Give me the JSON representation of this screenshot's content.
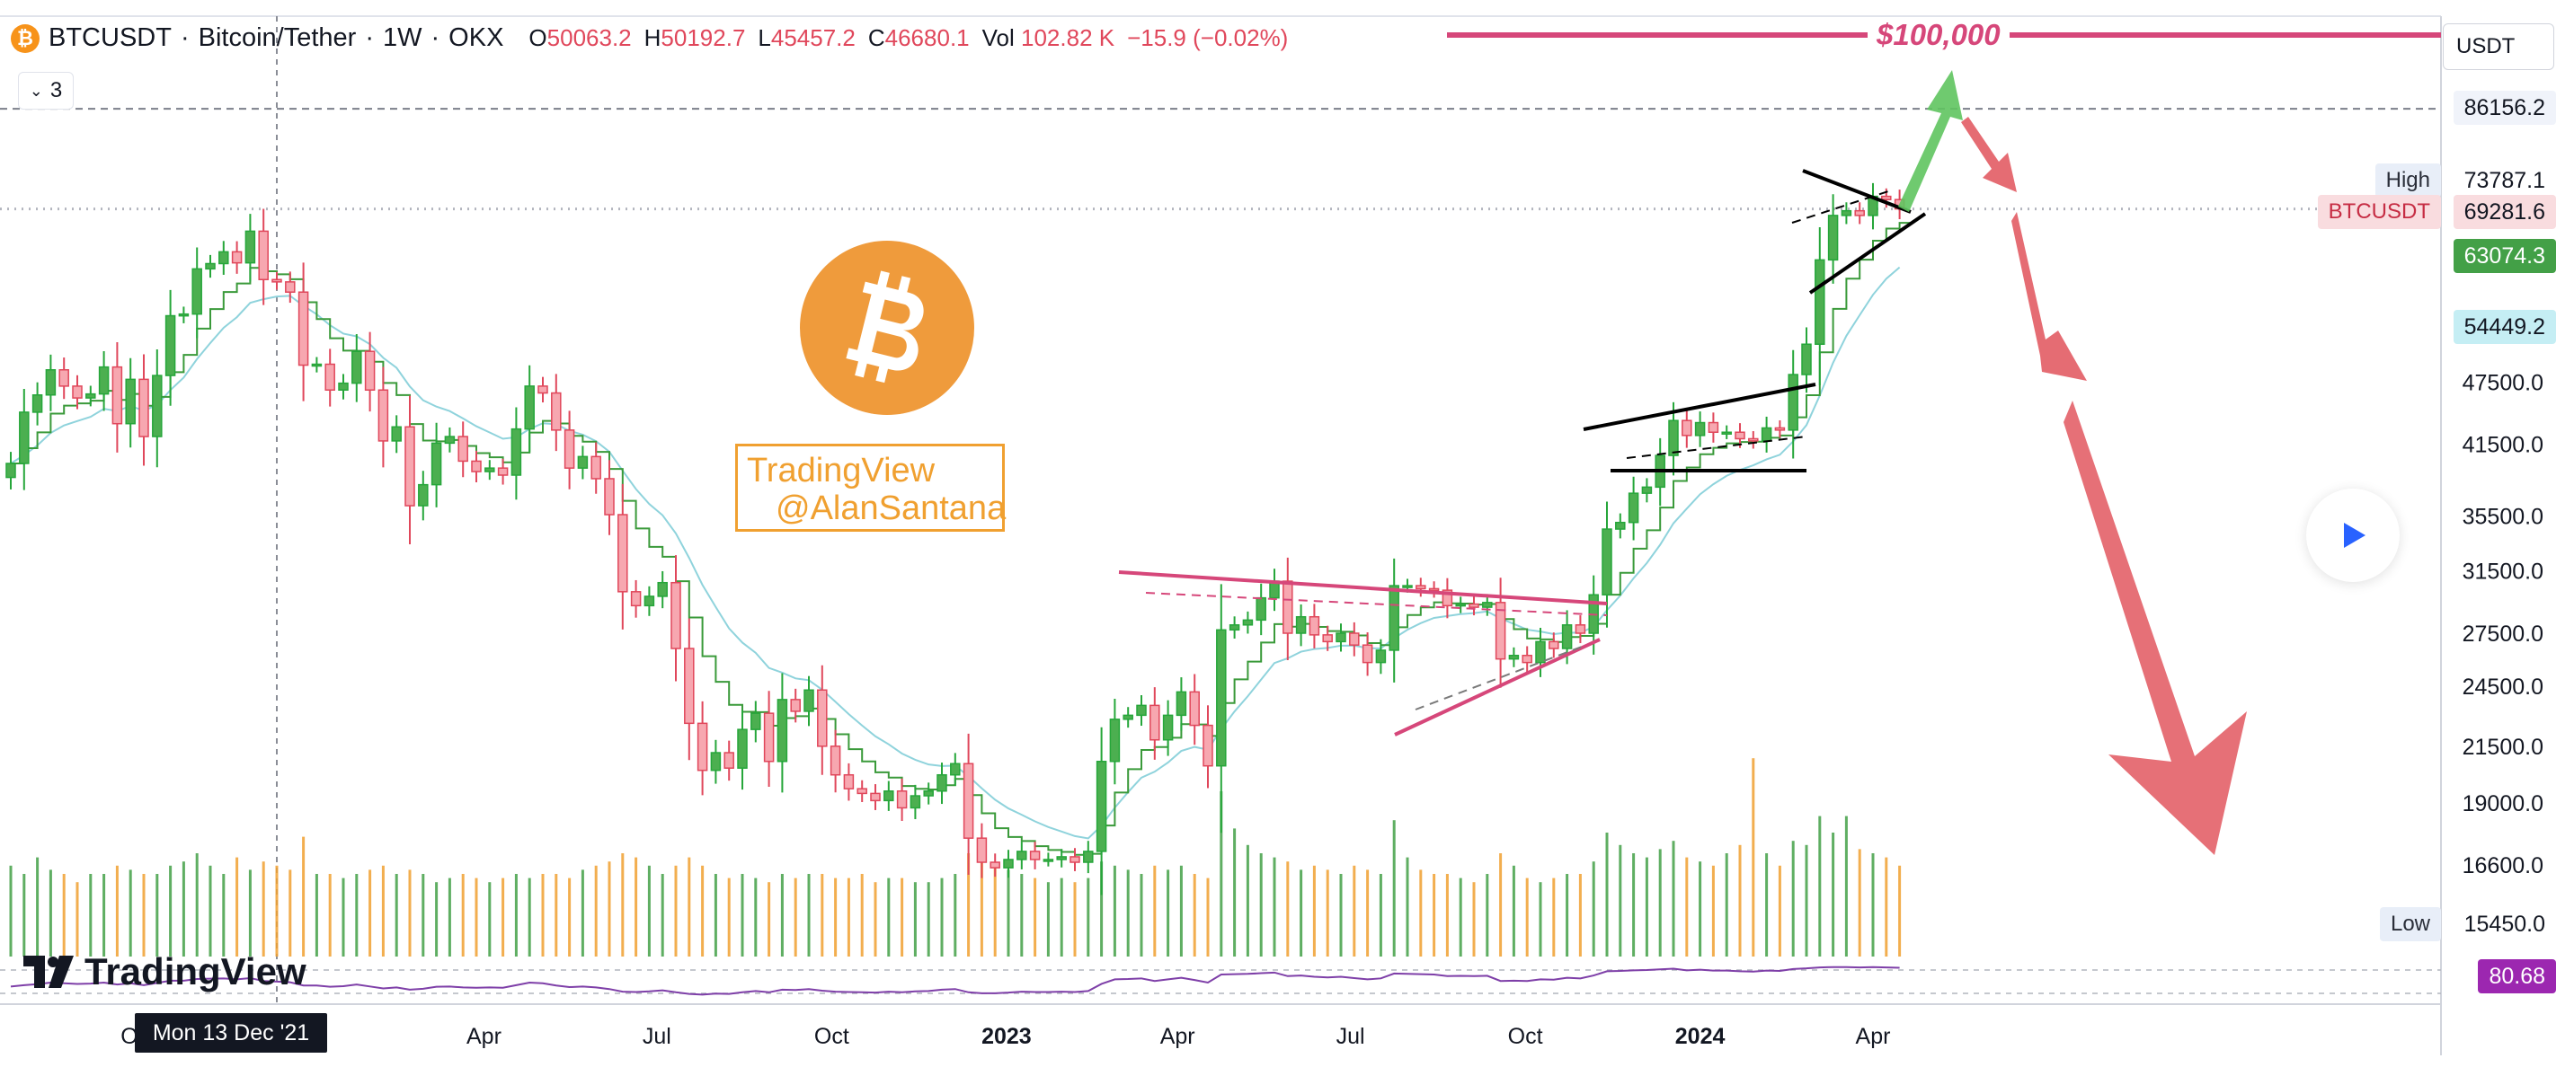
{
  "header": {
    "symbol": "BTCUSDT",
    "description": "Bitcoin/Tether",
    "interval": "1W",
    "exchange": "OKX",
    "sep": "·",
    "ohlc": [
      {
        "k": "O",
        "v": "50063.2"
      },
      {
        "k": "H",
        "v": "50192.7"
      },
      {
        "k": "L",
        "v": "45457.2"
      },
      {
        "k": "C",
        "v": "46680.1"
      },
      {
        "k": "Vol",
        "v": "102.82 K"
      }
    ],
    "change": "−15.9 (−0.02%)",
    "indicator_count": "3",
    "badge_glyph": "₿"
  },
  "currency_button": "USDT",
  "target_label": "$100,000",
  "watermark": {
    "line1": "TradingView",
    "line2": "@AlanSantana"
  },
  "brand": "TradingView",
  "crosshair_date": "Mon 13 Dec '21",
  "price_tags": {
    "p86156": "86156.2",
    "high_label": "High",
    "high_value": "73787.1",
    "sym_label": "BTCUSDT",
    "sym_value": "69281.6",
    "ema_fast": "63074.3",
    "ema_slow": "54449.2",
    "low_label": "Low",
    "low_value": "15450.0",
    "rsi": "80.68"
  },
  "colors": {
    "up": "#26a63a",
    "down": "#e0475b",
    "up_fill": "#4caf50",
    "down_fill": "#f7a7b0",
    "ema_fast": "#3a9a3a",
    "ema_slow": "#8fd3dc",
    "pink_line": "#d6477a",
    "arrow_green": "#5fc45f",
    "arrow_red": "#e25c64",
    "rsi": "#7e3fa8"
  },
  "chart_data": {
    "type": "candlestick",
    "scale": "log",
    "ylim": [
      13600,
      105000
    ],
    "y_ticks": [
      14800,
      16600,
      19000,
      21500,
      24500,
      27500,
      31500,
      35500,
      41500,
      47500
    ],
    "x_labels": [
      {
        "label": "Oct",
        "date": "2021-10-01",
        "bold": false
      },
      {
        "label": "Apr",
        "date": "2022-04-01",
        "bold": false
      },
      {
        "label": "Jul",
        "date": "2022-07-01",
        "bold": false
      },
      {
        "label": "Oct",
        "date": "2022-10-01",
        "bold": false
      },
      {
        "label": "2023",
        "date": "2023-01-01",
        "bold": true
      },
      {
        "label": "Apr",
        "date": "2023-04-01",
        "bold": false
      },
      {
        "label": "Jul",
        "date": "2023-07-01",
        "bold": false
      },
      {
        "label": "Oct",
        "date": "2023-10-01",
        "bold": false
      },
      {
        "label": "2024",
        "date": "2024-01-01",
        "bold": true
      },
      {
        "label": "Apr",
        "date": "2024-04-01",
        "bold": false
      }
    ],
    "first_week": "2021-07-26",
    "crosshair_week": "2021-12-13",
    "closes": [
      39800,
      44500,
      46200,
      48800,
      47100,
      45900,
      46300,
      49100,
      43400,
      47800,
      42200,
      48200,
      54900,
      55100,
      60800,
      61500,
      63100,
      61600,
      66000,
      59400,
      59100,
      57800,
      49300,
      49400,
      46700,
      47400,
      50800,
      46700,
      41800,
      43100,
      36300,
      38000,
      41600,
      42200,
      40000,
      39100,
      39400,
      38800,
      42900,
      47100,
      46400,
      42800,
      39400,
      40400,
      38500,
      35600,
      30100,
      29200,
      29800,
      30700,
      26600,
      22600,
      20400,
      21200,
      20500,
      22300,
      23100,
      20800,
      23800,
      23200,
      24300,
      21500,
      20200,
      19600,
      19400,
      19100,
      19500,
      18800,
      19300,
      19500,
      20200,
      20700,
      17600,
      16700,
      16500,
      16800,
      17100,
      16800,
      16800,
      16900,
      16700,
      17100,
      20800,
      22800,
      23000,
      23500,
      21800,
      23000,
      24200,
      22500,
      20600,
      27700,
      28000,
      28300,
      29700,
      30800,
      27500,
      28500,
      27400,
      27000,
      27500,
      26800,
      25800,
      26500,
      30500,
      30500,
      30300,
      30200,
      29200,
      29300,
      29100,
      29400,
      26000,
      26200,
      25800,
      27000,
      26600,
      28000,
      27500,
      29900,
      34500,
      35000,
      37300,
      37800,
      40500,
      43700,
      42300,
      43500,
      42600,
      42600,
      42000,
      41800,
      43000,
      42800,
      48300,
      51600,
      62000,
      68300,
      69000,
      68300,
      71200,
      70700,
      69281.6
    ],
    "volume_relative": [
      0.22,
      0.2,
      0.24,
      0.21,
      0.2,
      0.18,
      0.2,
      0.2,
      0.22,
      0.21,
      0.2,
      0.2,
      0.22,
      0.23,
      0.25,
      0.22,
      0.2,
      0.24,
      0.21,
      0.23,
      0.22,
      0.21,
      0.29,
      0.2,
      0.2,
      0.19,
      0.2,
      0.21,
      0.22,
      0.2,
      0.21,
      0.2,
      0.18,
      0.19,
      0.2,
      0.19,
      0.18,
      0.19,
      0.2,
      0.19,
      0.2,
      0.2,
      0.19,
      0.21,
      0.22,
      0.23,
      0.25,
      0.24,
      0.22,
      0.2,
      0.22,
      0.24,
      0.22,
      0.2,
      0.19,
      0.2,
      0.19,
      0.18,
      0.2,
      0.19,
      0.2,
      0.2,
      0.19,
      0.19,
      0.2,
      0.18,
      0.19,
      0.19,
      0.18,
      0.18,
      0.19,
      0.2,
      0.25,
      0.27,
      0.22,
      0.21,
      0.2,
      0.19,
      0.18,
      0.19,
      0.18,
      0.19,
      0.23,
      0.22,
      0.21,
      0.2,
      0.22,
      0.21,
      0.22,
      0.2,
      0.19,
      0.4,
      0.31,
      0.27,
      0.25,
      0.24,
      0.23,
      0.21,
      0.22,
      0.21,
      0.2,
      0.22,
      0.21,
      0.2,
      0.33,
      0.24,
      0.21,
      0.2,
      0.2,
      0.19,
      0.18,
      0.2,
      0.25,
      0.22,
      0.19,
      0.18,
      0.19,
      0.2,
      0.2,
      0.23,
      0.3,
      0.27,
      0.25,
      0.24,
      0.26,
      0.28,
      0.24,
      0.23,
      0.22,
      0.25,
      0.27,
      0.48,
      0.25,
      0.22,
      0.28,
      0.27,
      0.34,
      0.3,
      0.34,
      0.26,
      0.25,
      0.24,
      0.22
    ],
    "rsi_relative": [
      0.38,
      0.42,
      0.45,
      0.5,
      0.48,
      0.46,
      0.47,
      0.5,
      0.44,
      0.48,
      0.42,
      0.49,
      0.56,
      0.56,
      0.61,
      0.62,
      0.63,
      0.6,
      0.64,
      0.55,
      0.53,
      0.51,
      0.41,
      0.41,
      0.37,
      0.39,
      0.44,
      0.38,
      0.32,
      0.35,
      0.28,
      0.31,
      0.37,
      0.38,
      0.35,
      0.34,
      0.35,
      0.34,
      0.42,
      0.5,
      0.48,
      0.41,
      0.36,
      0.38,
      0.35,
      0.3,
      0.22,
      0.21,
      0.23,
      0.26,
      0.2,
      0.15,
      0.13,
      0.16,
      0.15,
      0.2,
      0.24,
      0.2,
      0.28,
      0.27,
      0.3,
      0.25,
      0.22,
      0.21,
      0.2,
      0.19,
      0.22,
      0.2,
      0.23,
      0.24,
      0.28,
      0.3,
      0.2,
      0.17,
      0.17,
      0.19,
      0.22,
      0.21,
      0.21,
      0.22,
      0.21,
      0.24,
      0.46,
      0.6,
      0.61,
      0.63,
      0.55,
      0.6,
      0.65,
      0.58,
      0.5,
      0.75,
      0.76,
      0.77,
      0.79,
      0.81,
      0.7,
      0.72,
      0.68,
      0.66,
      0.68,
      0.64,
      0.6,
      0.63,
      0.78,
      0.77,
      0.76,
      0.75,
      0.7,
      0.71,
      0.7,
      0.71,
      0.55,
      0.56,
      0.55,
      0.6,
      0.59,
      0.65,
      0.63,
      0.72,
      0.85,
      0.86,
      0.88,
      0.89,
      0.91,
      0.93,
      0.88,
      0.9,
      0.87,
      0.87,
      0.85,
      0.84,
      0.87,
      0.86,
      0.92,
      0.94,
      0.97,
      0.98,
      0.98,
      0.97,
      0.98,
      0.97,
      0.96
    ]
  }
}
